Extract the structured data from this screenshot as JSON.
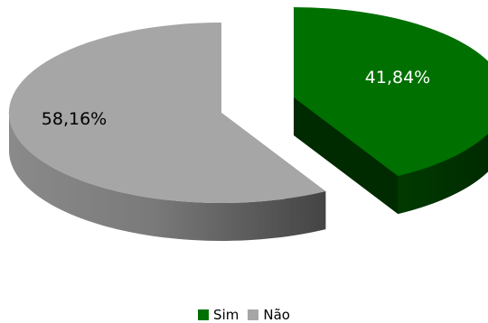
{
  "chart_data": {
    "type": "pie",
    "style": "3d-exploded",
    "categories": [
      "Sim",
      "Não"
    ],
    "values": [
      41.84,
      58.16
    ],
    "data_labels": [
      "41,84%",
      "58,16%"
    ],
    "colors": [
      "#007000",
      "#A6A6A6"
    ],
    "legend": {
      "position": "bottom",
      "entries": [
        "Sim",
        "Não"
      ]
    }
  }
}
